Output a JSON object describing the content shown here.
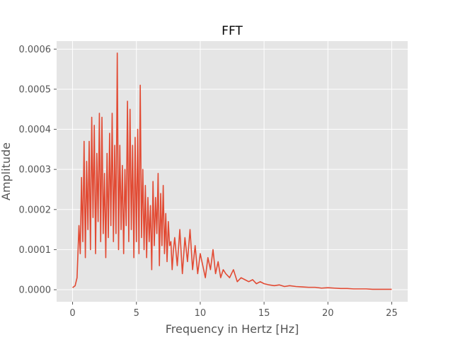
{
  "chart_data": {
    "type": "line",
    "title": "FFT",
    "xlabel": "Frequency in Hertz [Hz]",
    "ylabel": "Amplitude",
    "xlim": [
      -1.25,
      26.25
    ],
    "ylim": [
      -3e-05,
      0.00062
    ],
    "xticks": [
      0,
      5,
      10,
      15,
      20,
      25
    ],
    "xtick_labels": [
      "0",
      "5",
      "10",
      "15",
      "20",
      "25"
    ],
    "yticks": [
      0,
      0.0001,
      0.0002,
      0.0003,
      0.0004,
      0.0005,
      0.0006
    ],
    "ytick_labels": [
      "0.0000",
      "0.0001",
      "0.0002",
      "0.0003",
      "0.0004",
      "0.0005",
      "0.0006"
    ],
    "grid": true,
    "background": "#e5e5e5",
    "grid_color": "#ffffff",
    "series": [
      {
        "color": "#e24a33",
        "x": [
          0,
          0.2,
          0.35,
          0.5,
          0.6,
          0.7,
          0.8,
          0.9,
          1.0,
          1.1,
          1.2,
          1.3,
          1.4,
          1.5,
          1.6,
          1.7,
          1.8,
          1.9,
          2.0,
          2.1,
          2.2,
          2.3,
          2.4,
          2.5,
          2.6,
          2.7,
          2.8,
          2.9,
          3.0,
          3.1,
          3.2,
          3.3,
          3.4,
          3.5,
          3.6,
          3.7,
          3.8,
          3.9,
          4.0,
          4.1,
          4.2,
          4.3,
          4.4,
          4.5,
          4.6,
          4.7,
          4.8,
          4.9,
          5.0,
          5.1,
          5.2,
          5.3,
          5.4,
          5.5,
          5.6,
          5.7,
          5.8,
          5.9,
          6.0,
          6.1,
          6.2,
          6.3,
          6.4,
          6.5,
          6.6,
          6.7,
          6.8,
          6.9,
          7.0,
          7.1,
          7.2,
          7.3,
          7.4,
          7.5,
          7.6,
          7.7,
          7.8,
          7.9,
          8.0,
          8.2,
          8.4,
          8.6,
          8.8,
          9.0,
          9.2,
          9.4,
          9.6,
          9.8,
          10.0,
          10.2,
          10.4,
          10.6,
          10.8,
          11.0,
          11.2,
          11.4,
          11.6,
          11.8,
          12.0,
          12.3,
          12.6,
          12.9,
          13.2,
          13.5,
          13.8,
          14.1,
          14.4,
          14.7,
          15.0,
          15.4,
          15.8,
          16.2,
          16.6,
          17.0,
          17.5,
          18.0,
          18.5,
          19.0,
          19.5,
          20.0,
          20.5,
          21.0,
          21.5,
          22.0,
          22.5,
          23.0,
          23.5,
          24.0,
          24.5,
          25.0
        ],
        "y": [
          5e-06,
          1e-05,
          3e-05,
          0.00016,
          9e-05,
          0.00028,
          0.00012,
          0.00037,
          8e-05,
          0.00032,
          0.00015,
          0.00037,
          0.0001,
          0.00043,
          0.00018,
          0.00041,
          9e-05,
          0.00034,
          0.00017,
          0.00044,
          0.00012,
          0.00043,
          0.00014,
          0.00029,
          8e-05,
          0.00034,
          0.00013,
          0.00039,
          0.00016,
          0.00044,
          0.00012,
          0.00036,
          0.00014,
          0.00059,
          0.0001,
          0.00036,
          0.00015,
          0.00031,
          9e-05,
          0.0003,
          0.00016,
          0.00047,
          0.00012,
          0.00045,
          0.00015,
          0.00036,
          8e-05,
          0.00038,
          0.00012,
          0.0004,
          9e-05,
          0.00051,
          0.00013,
          0.0003,
          0.0001,
          0.00026,
          8e-05,
          0.00023,
          0.00012,
          0.00021,
          5e-05,
          0.00027,
          0.00011,
          0.00023,
          0.00014,
          0.00029,
          6e-05,
          0.00024,
          0.00011,
          0.00026,
          9e-05,
          0.00019,
          7e-05,
          0.00017,
          0.00011,
          0.00012,
          5e-05,
          0.0001,
          0.00013,
          6e-05,
          0.00015,
          4e-05,
          0.00013,
          7e-05,
          0.00015,
          5e-05,
          0.00011,
          4e-05,
          9e-05,
          6e-05,
          3e-05,
          8e-05,
          5e-05,
          0.0001,
          4e-05,
          7e-05,
          3e-05,
          5e-05,
          4e-05,
          3e-05,
          5e-05,
          2e-05,
          3e-05,
          2.5e-05,
          2e-05,
          2.5e-05,
          1.5e-05,
          2e-05,
          1.5e-05,
          1.2e-05,
          1e-05,
          1.2e-05,
          8e-06,
          1e-05,
          8e-06,
          7e-06,
          6e-06,
          6e-06,
          4e-06,
          5e-06,
          4e-06,
          3e-06,
          3e-06,
          2e-06,
          2e-06,
          2e-06,
          1e-06,
          1e-06,
          1e-06,
          1e-06
        ]
      }
    ]
  }
}
